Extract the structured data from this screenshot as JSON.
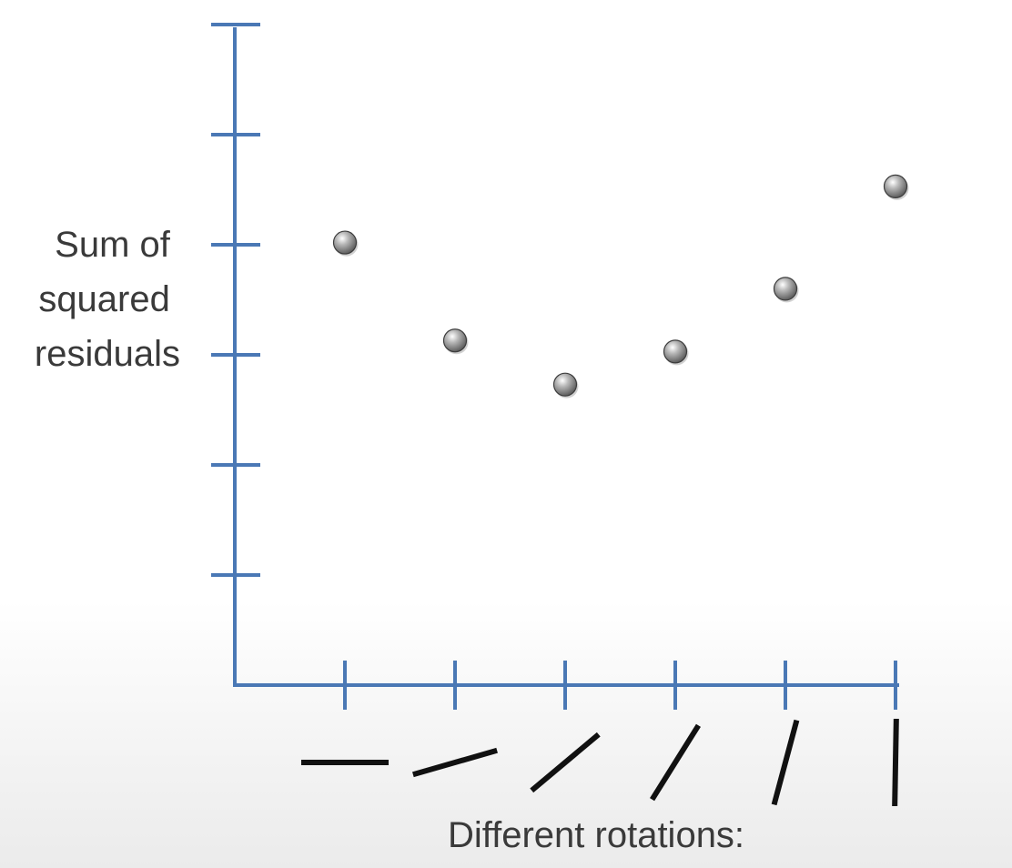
{
  "chart_data": {
    "type": "scatter",
    "ylabel_lines": [
      "Sum of",
      "squared",
      "residuals"
    ],
    "xlabel": "Different rotations:",
    "x": [
      1,
      2,
      3,
      4,
      5,
      6
    ],
    "y": [
      4.02,
      3.13,
      2.73,
      3.03,
      3.6,
      4.53
    ],
    "rotation_angles_deg": [
      0,
      16,
      40,
      58,
      75,
      89
    ],
    "xlim": [
      0,
      6
    ],
    "ylim": [
      0,
      6
    ],
    "y_ticks": 6,
    "x_ticks": 6,
    "grid": false,
    "legend": false,
    "colors": {
      "axis": "#4a78b5",
      "point": "#6e6e6e",
      "rotation_line": "#111111",
      "text": "#3a3a3a"
    }
  }
}
